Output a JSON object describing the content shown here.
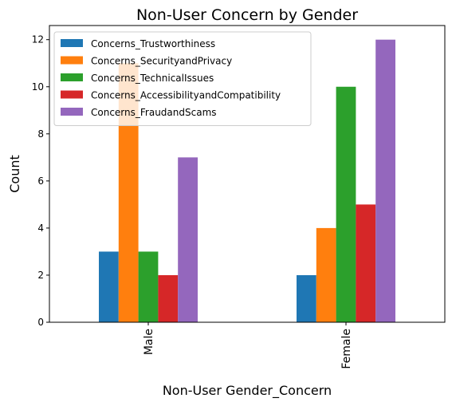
{
  "chart_data": {
    "type": "bar",
    "title": "Non-User Concern by Gender",
    "xlabel": "Non-User Gender_Concern",
    "ylabel": "Count",
    "categories": [
      "Male",
      "Female"
    ],
    "ylim": [
      0,
      12.6
    ],
    "yticks": [
      0,
      2,
      4,
      6,
      8,
      10,
      12
    ],
    "grid": false,
    "legend_position": "top-left",
    "series": [
      {
        "name": "Concerns_Trustworthiness",
        "color": "#1f77b4",
        "values": [
          3,
          2
        ]
      },
      {
        "name": "Concerns_SecurityandPrivacy",
        "color": "#ff7f0e",
        "values": [
          11,
          4
        ]
      },
      {
        "name": "Concerns_TechnicalIssues",
        "color": "#2ca02c",
        "values": [
          3,
          10
        ]
      },
      {
        "name": "Concerns_AccessibilityandCompatibility",
        "color": "#d62728",
        "values": [
          2,
          5
        ]
      },
      {
        "name": "Concerns_FraudandScams",
        "color": "#9467bd",
        "values": [
          7,
          12
        ]
      }
    ]
  }
}
